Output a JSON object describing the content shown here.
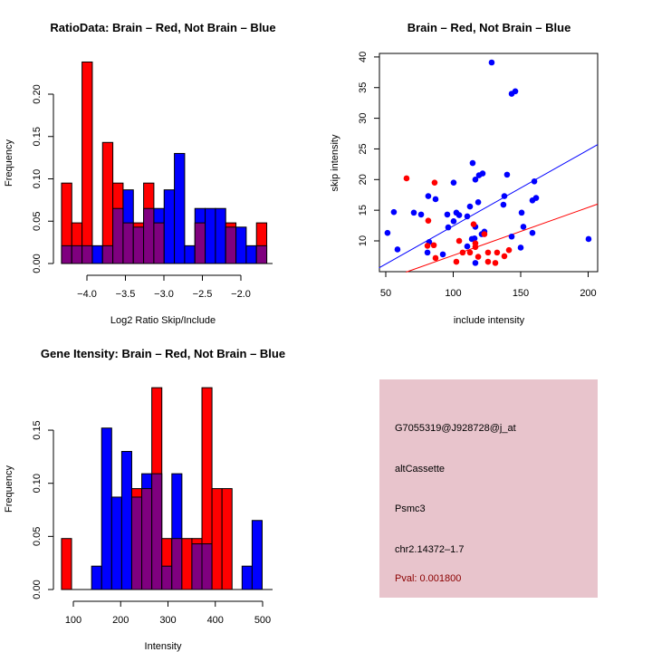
{
  "colors": {
    "brain": "#ff0000",
    "not_brain": "#0000ff",
    "overlap": "#7f007f",
    "panel_bg": "#e8c4cc",
    "pval": "#8b0000"
  },
  "chart_data": [
    {
      "id": "ratio-hist",
      "type": "bar",
      "title": "RatioData: Brain – Red, Not Brain – Blue",
      "xlabel": "Log2 Ratio Skip/Include",
      "ylabel": "Frequency",
      "bin_start": -4.33,
      "bin_width": 0.1333,
      "xticks": [
        -4.0,
        -3.5,
        -3.0,
        -2.5,
        -2.0
      ],
      "xtick_labels": [
        "−4.0",
        "−3.5",
        "−3.0",
        "−2.5",
        "−2.0"
      ],
      "yticks": [
        0.0,
        0.05,
        0.1,
        0.15,
        0.2
      ],
      "ytick_labels": [
        "0.00",
        "0.05",
        "0.10",
        "0.15",
        "0.20"
      ],
      "ylim": [
        0,
        0.24
      ],
      "series": [
        {
          "name": "Brain",
          "color": "red",
          "values": [
            0.095,
            0.048,
            0.238,
            0,
            0.143,
            0.095,
            0.048,
            0.048,
            0.095,
            0.048,
            0,
            0,
            0,
            0.048,
            0,
            0,
            0.048,
            0,
            0,
            0.048
          ]
        },
        {
          "name": "Not Brain",
          "color": "blue",
          "values": [
            0.021,
            0.021,
            0.021,
            0.021,
            0.021,
            0.065,
            0.087,
            0.043,
            0.065,
            0.065,
            0.087,
            0.13,
            0.021,
            0.065,
            0.065,
            0.065,
            0.043,
            0.043,
            0.021,
            0.021
          ]
        }
      ]
    },
    {
      "id": "scatter",
      "type": "scatter",
      "title": "Brain – Red, Not Brain – Blue",
      "xlabel": "include intensity",
      "ylabel": "skip intensity",
      "xlim": [
        45,
        207
      ],
      "ylim": [
        4.9,
        40.5
      ],
      "xticks": [
        50,
        100,
        150,
        200
      ],
      "xtick_labels": [
        "50",
        "100",
        "150",
        "200"
      ],
      "yticks": [
        10,
        15,
        20,
        25,
        30,
        35,
        40
      ],
      "ytick_labels": [
        "10",
        "15",
        "20",
        "25",
        "30",
        "35",
        "40"
      ],
      "series": [
        {
          "name": "Not Brain",
          "color": "blue",
          "points": [
            [
              51.3,
              11.3
            ],
            [
              56.0,
              14.7
            ],
            [
              58.7,
              8.6
            ],
            [
              70.8,
              14.6
            ],
            [
              76.2,
              14.3
            ],
            [
              81.5,
              17.3
            ],
            [
              82.2,
              9.8
            ],
            [
              80.9,
              8.1
            ],
            [
              86.9,
              16.8
            ],
            [
              92.3,
              7.8
            ],
            [
              95.6,
              14.3
            ],
            [
              96.3,
              12.2
            ],
            [
              100.3,
              13.2
            ],
            [
              100.3,
              19.5
            ],
            [
              102.3,
              14.6
            ],
            [
              104.4,
              14.2
            ],
            [
              110.4,
              14.0
            ],
            [
              110.4,
              9.1
            ],
            [
              112.4,
              15.6
            ],
            [
              114.4,
              22.7
            ],
            [
              113.8,
              10.3
            ],
            [
              115.8,
              10.4
            ],
            [
              116.4,
              12.3
            ],
            [
              116.4,
              20.0
            ],
            [
              116.4,
              6.4
            ],
            [
              118.5,
              16.3
            ],
            [
              119.1,
              20.7
            ],
            [
              121.1,
              11.1
            ],
            [
              121.8,
              21.0
            ],
            [
              123.1,
              11.5
            ],
            [
              128.5,
              39.1
            ],
            [
              137.2,
              15.9
            ],
            [
              137.9,
              17.3
            ],
            [
              139.9,
              20.8
            ],
            [
              143.3,
              34.0
            ],
            [
              146.0,
              34.4
            ],
            [
              143.3,
              10.7
            ],
            [
              150.0,
              8.9
            ],
            [
              150.7,
              14.6
            ],
            [
              152.0,
              12.3
            ],
            [
              158.7,
              11.3
            ],
            [
              158.7,
              16.6
            ],
            [
              160.1,
              19.7
            ],
            [
              161.4,
              17.0
            ],
            [
              200.3,
              10.3
            ]
          ]
        },
        {
          "name": "Brain",
          "color": "red",
          "points": [
            [
              65.4,
              20.2
            ],
            [
              86.2,
              19.5
            ],
            [
              81.5,
              13.3
            ],
            [
              115.1,
              12.7
            ],
            [
              80.9,
              9.2
            ],
            [
              85.6,
              9.3
            ],
            [
              86.9,
              7.2
            ],
            [
              104.4,
              10.0
            ],
            [
              102.3,
              6.6
            ],
            [
              107.0,
              8.1
            ],
            [
              112.4,
              8.1
            ],
            [
              116.4,
              9.6
            ],
            [
              116.4,
              9.0
            ],
            [
              118.5,
              7.4
            ],
            [
              123.1,
              11.1
            ],
            [
              125.8,
              8.1
            ],
            [
              125.8,
              6.6
            ],
            [
              131.2,
              6.4
            ],
            [
              132.5,
              8.1
            ],
            [
              137.9,
              7.5
            ],
            [
              141.3,
              8.5
            ]
          ]
        }
      ],
      "fit_lines": [
        {
          "name": "Not Brain fit",
          "color": "blue",
          "from": [
            45,
            5.6
          ],
          "to": [
            207,
            25.7
          ]
        },
        {
          "name": "Brain fit",
          "color": "red",
          "from": [
            65,
            4.9
          ],
          "to": [
            207,
            16.0
          ]
        }
      ]
    },
    {
      "id": "intensity-hist",
      "type": "bar",
      "title": "Gene Itensity: Brain – Red, Not Brain – Blue",
      "xlabel": "Intensity",
      "ylabel": "Frequency",
      "bin_start": 75,
      "bin_width": 21.2,
      "xticks": [
        100,
        200,
        300,
        400,
        500
      ],
      "xtick_labels": [
        "100",
        "200",
        "300",
        "400",
        "500"
      ],
      "yticks": [
        0.0,
        0.05,
        0.1,
        0.15
      ],
      "ytick_labels": [
        "0.00",
        "0.05",
        "0.10",
        "0.15"
      ],
      "ylim": [
        0,
        0.19
      ],
      "series": [
        {
          "name": "Brain",
          "color": "red",
          "values": [
            0.048,
            0,
            0,
            0,
            0,
            0,
            0,
            0.095,
            0.095,
            0.19,
            0.048,
            0.048,
            0.048,
            0.048,
            0.19,
            0.095,
            0.095,
            0,
            0,
            0
          ]
        },
        {
          "name": "Not Brain",
          "color": "blue",
          "values": [
            0,
            0,
            0,
            0.022,
            0.152,
            0.087,
            0.13,
            0.087,
            0.109,
            0.109,
            0.022,
            0.109,
            0,
            0.043,
            0.043,
            0,
            0,
            0,
            0.022,
            0.065
          ]
        }
      ]
    }
  ],
  "info_panel": {
    "probe_id": "G7055319@J928728@j_at",
    "event_type": "altCassette",
    "gene": "Psmc3",
    "location": "chr2.14372–1.7",
    "pval": "Pval: 0.001800"
  }
}
